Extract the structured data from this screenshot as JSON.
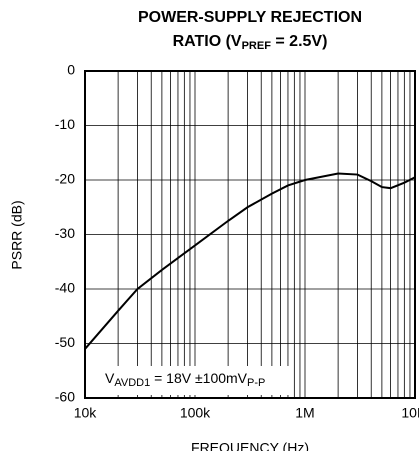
{
  "chart_data": {
    "type": "line",
    "title": [
      "POWER-SUPPLY REJECTION",
      "RATIO (V",
      "PREF",
      " = 2.5V)"
    ],
    "annotation": [
      "V",
      "AVDD1",
      " = 18V ±100mV",
      "P-P"
    ],
    "xlabel": "FREQUENCY (Hz)",
    "ylabel": "PSRR (dB)",
    "xscale": "log",
    "grid": true,
    "xlim": [
      10000,
      10000000
    ],
    "ylim": [
      -60,
      0
    ],
    "xticks": [
      {
        "value": 10000,
        "label": "10k"
      },
      {
        "value": 100000,
        "label": "100k"
      },
      {
        "value": 1000000,
        "label": "1M"
      },
      {
        "value": 10000000,
        "label": "10M"
      }
    ],
    "yticks": [
      0,
      -10,
      -20,
      -30,
      -40,
      -50,
      -60
    ],
    "series": [
      {
        "name": "PSRR",
        "color": "#000000",
        "x": [
          10000,
          20000,
          30000,
          50000,
          100000,
          200000,
          300000,
          500000,
          700000,
          1000000,
          2000000,
          3000000,
          4000000,
          5000000,
          6000000,
          8000000,
          10000000
        ],
        "values": [
          -51,
          -44,
          -40,
          -36.5,
          -32,
          -27.5,
          -25,
          -22.5,
          -21,
          -20,
          -18.8,
          -19,
          -20.2,
          -21.3,
          -21.5,
          -20.5,
          -19.5
        ]
      }
    ]
  }
}
